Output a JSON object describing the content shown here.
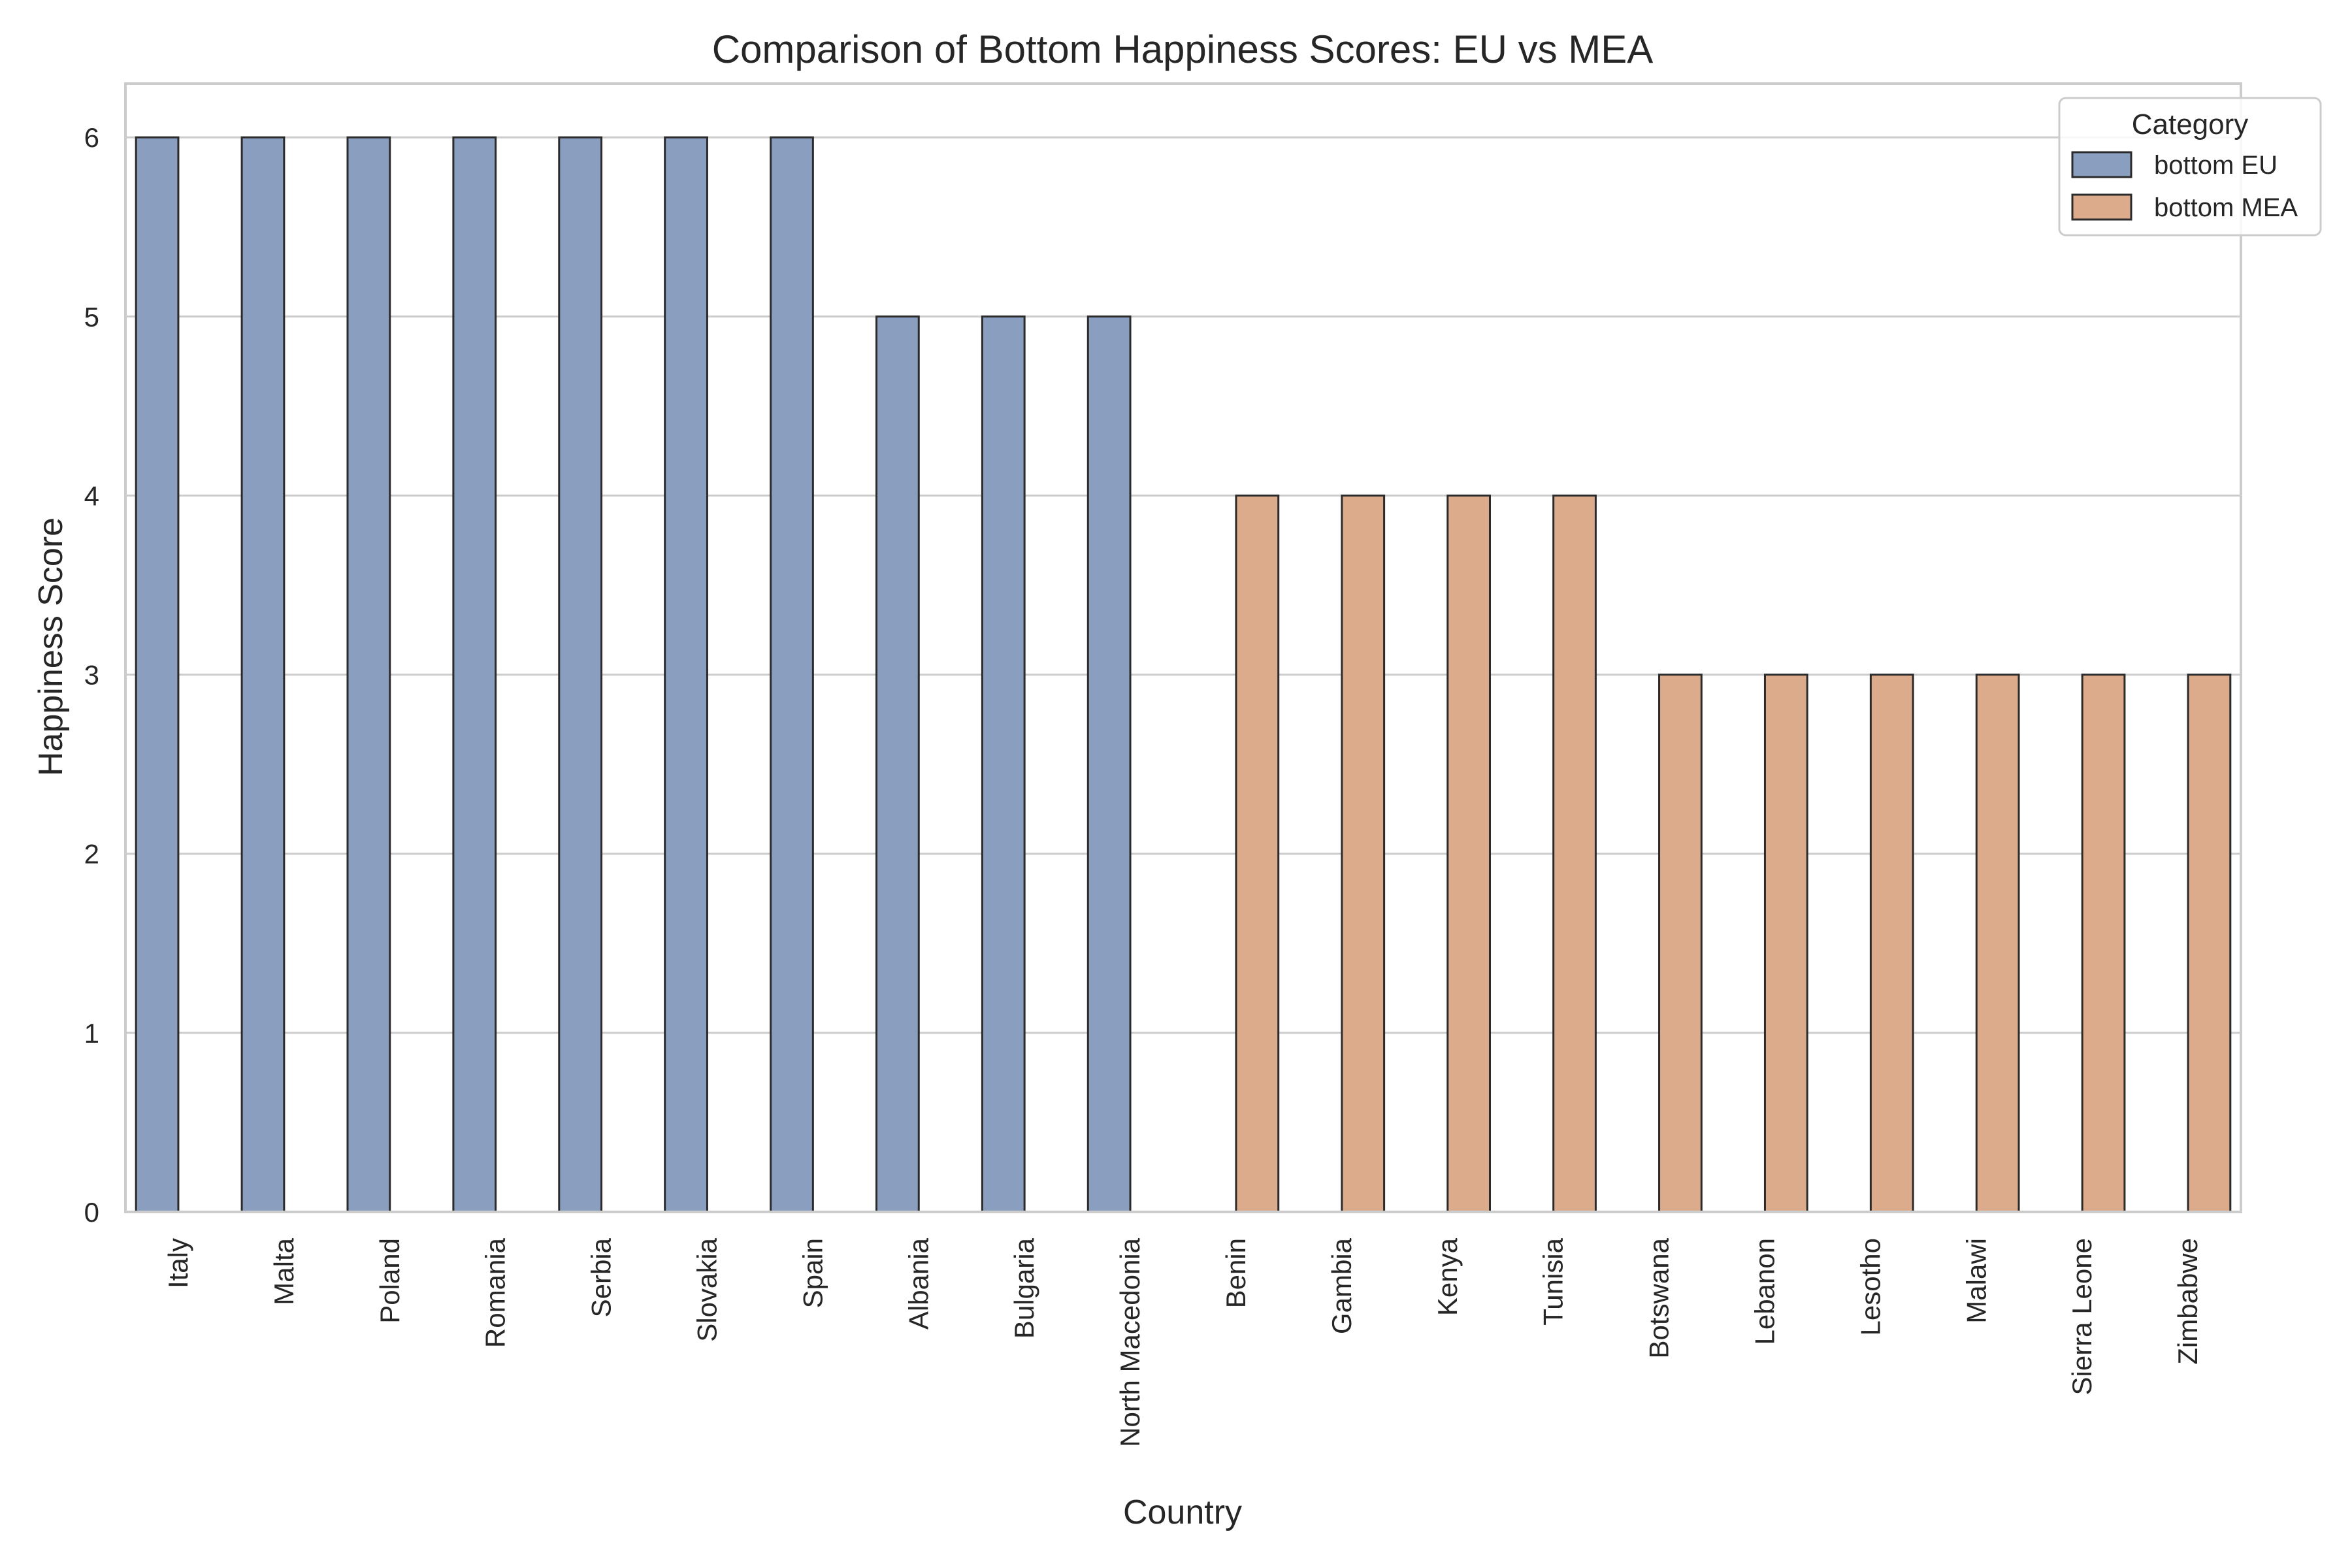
{
  "chart_data": {
    "type": "bar",
    "title": "Comparison of Bottom Happiness Scores: EU vs MEA",
    "xlabel": "Country",
    "ylabel": "Happiness Score",
    "ylim": [
      0,
      6.3
    ],
    "yticks": [
      0,
      1,
      2,
      3,
      4,
      5,
      6
    ],
    "grid": true,
    "legend": {
      "title": "Category",
      "placement": "top-right"
    },
    "categories": [
      "Italy",
      "Malta",
      "Poland",
      "Romania",
      "Serbia",
      "Slovakia",
      "Spain",
      "Albania",
      "Bulgaria",
      "North Macedonia",
      "Benin",
      "Gambia",
      "Kenya",
      "Tunisia",
      "Botswana",
      "Lebanon",
      "Lesotho",
      "Malawi",
      "Sierra Leone",
      "Zimbabwe"
    ],
    "series": [
      {
        "name": "bottom EU",
        "color": "#8a9ebf",
        "values": [
          6,
          6,
          6,
          6,
          6,
          6,
          6,
          5,
          5,
          5,
          null,
          null,
          null,
          null,
          null,
          null,
          null,
          null,
          null,
          null
        ]
      },
      {
        "name": "bottom MEA",
        "color": "#dcab8c",
        "values": [
          null,
          null,
          null,
          null,
          null,
          null,
          null,
          null,
          null,
          null,
          4,
          4,
          4,
          4,
          3,
          3,
          3,
          3,
          3,
          3
        ]
      }
    ]
  }
}
